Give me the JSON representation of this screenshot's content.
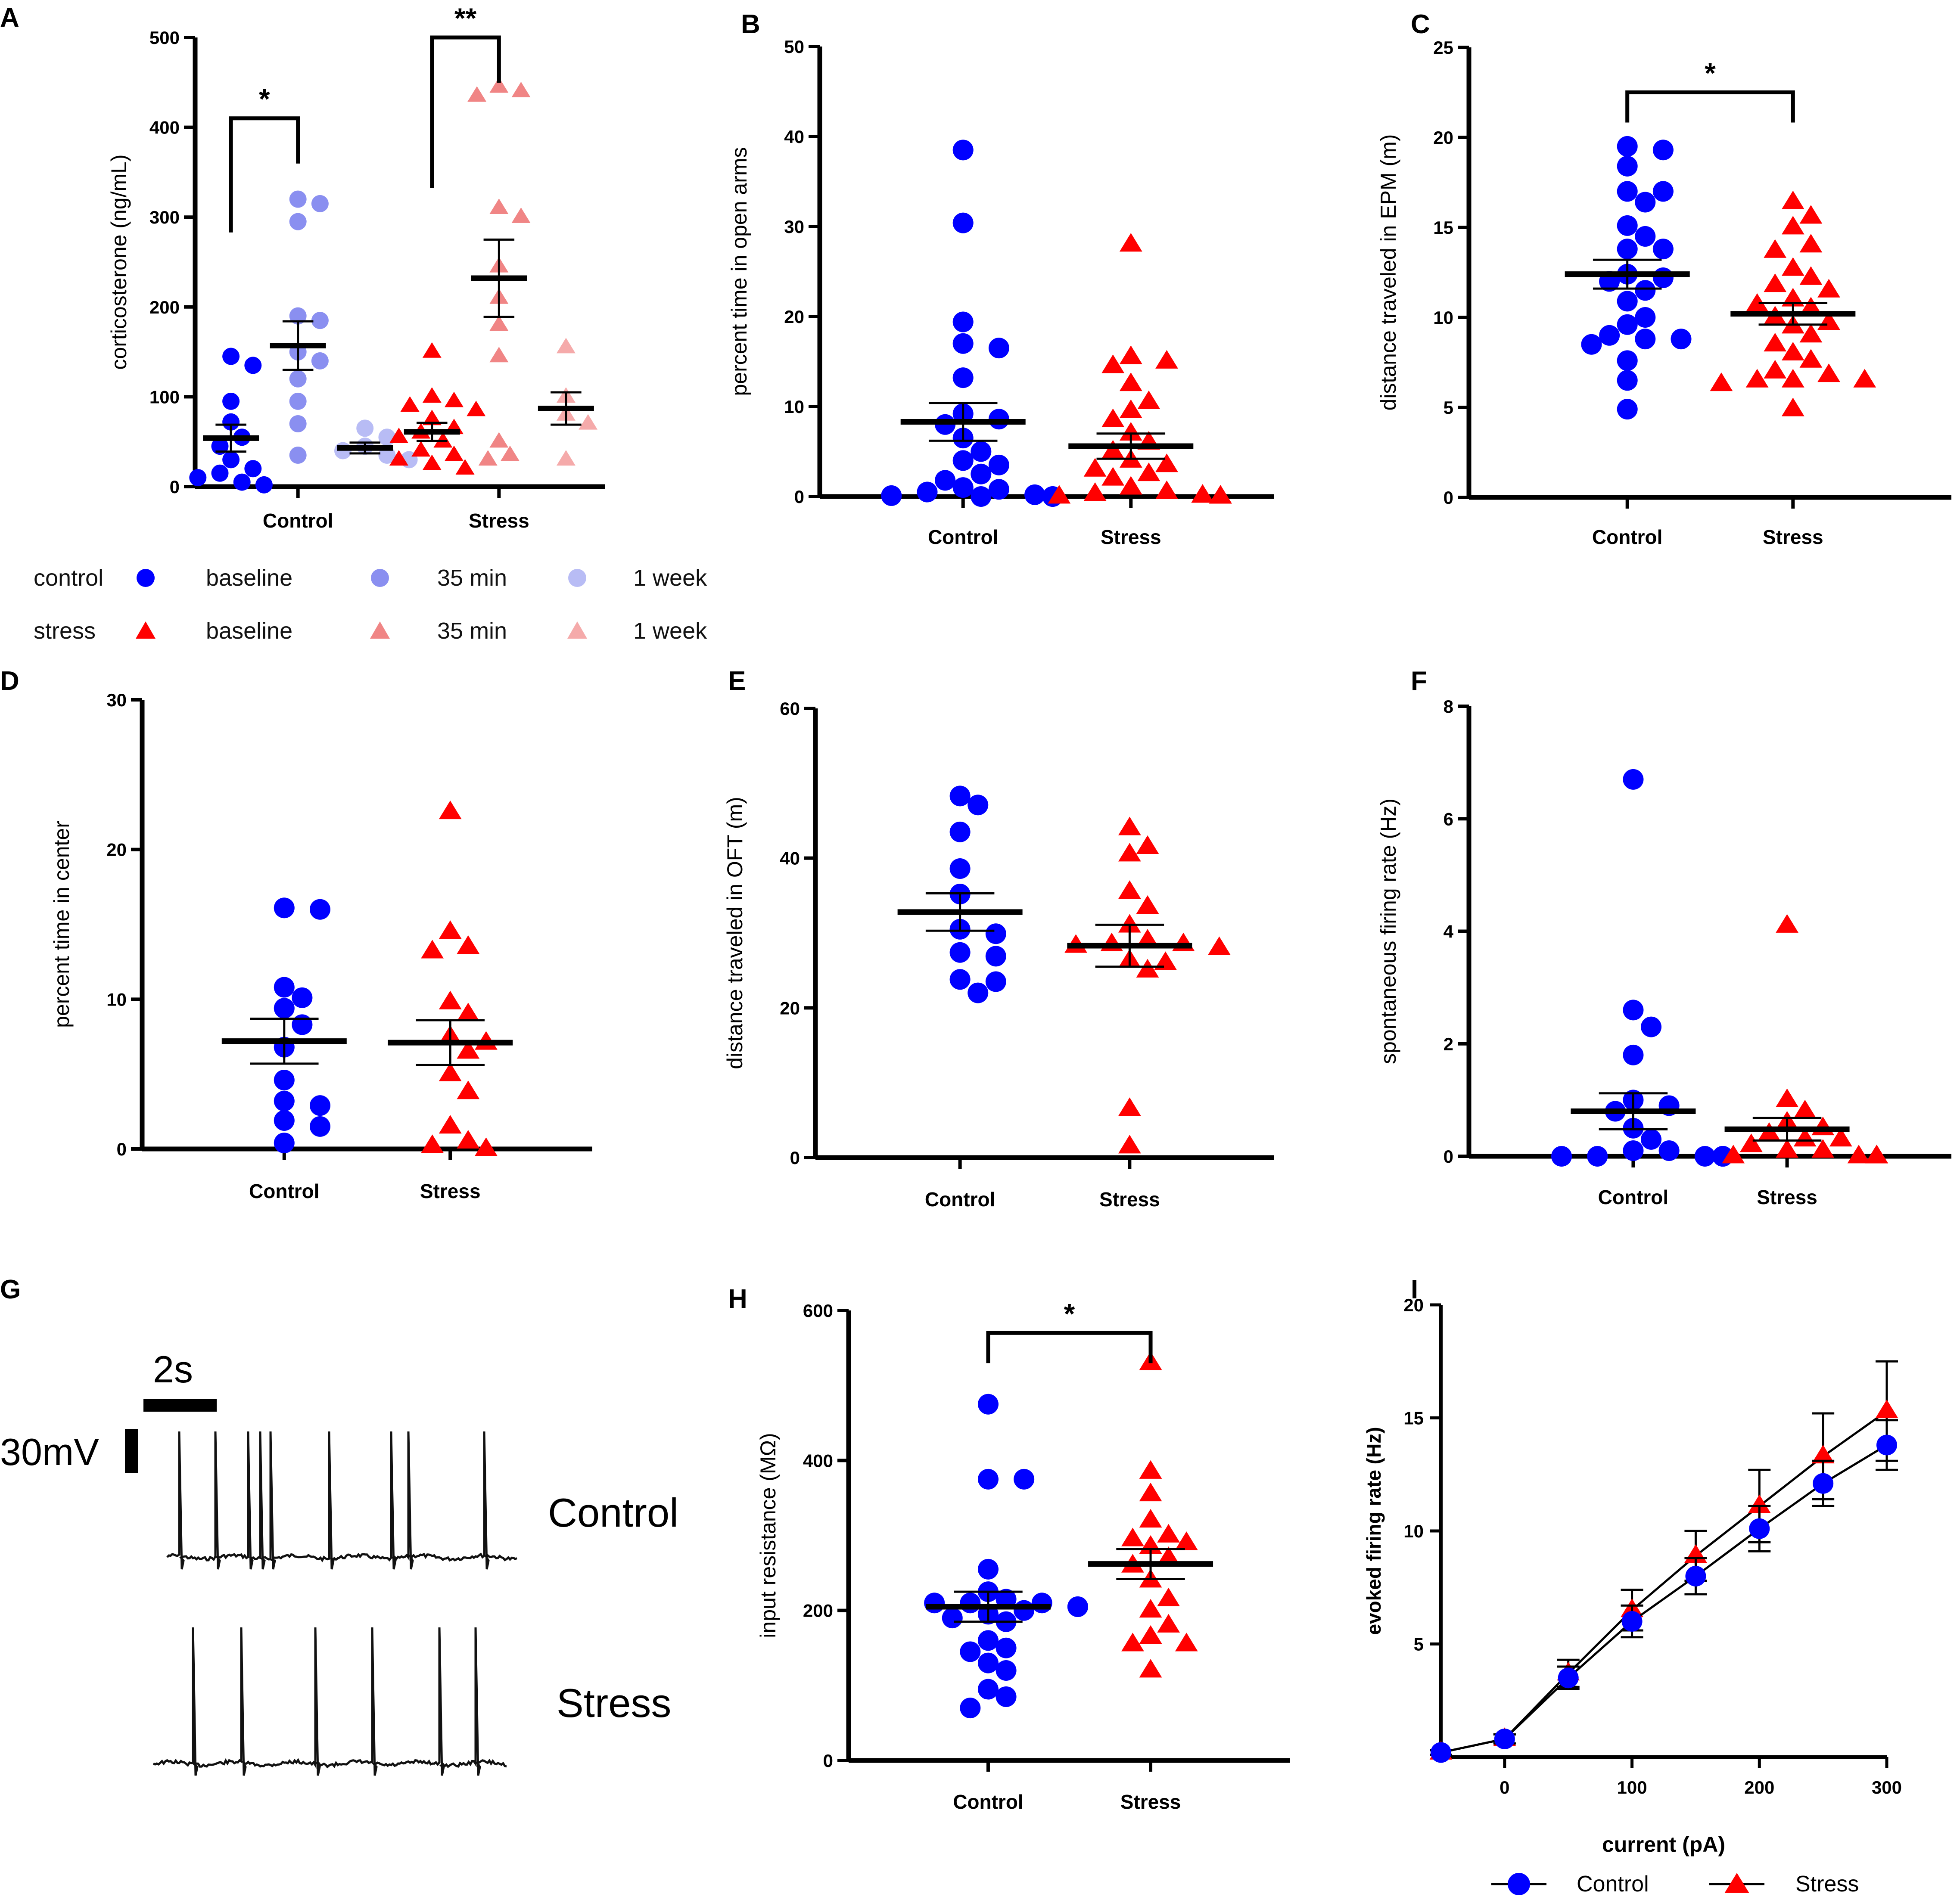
{
  "colors": {
    "control": "#0000ff",
    "stress": "#ff0000",
    "control_35": "#8a8ff0",
    "control_1w": "#b8bcf5",
    "stress_35": "#f08585",
    "stress_1w": "#f5aaaa",
    "axis": "#000000"
  },
  "chart_data": [
    {
      "id": "A",
      "panel_label": "A",
      "type": "scatter",
      "ylabel": "corticosterone (ng/mL)",
      "ylim": [
        0,
        500
      ],
      "yticks": [
        0,
        100,
        200,
        300,
        400,
        500
      ],
      "category_labels": [
        {
          "text": "Control",
          "x": 1
        },
        {
          "text": "Stress",
          "x": 4
        }
      ],
      "xlim": [
        -0.2,
        5.2
      ],
      "groups": [
        {
          "x": 0,
          "marker": "circle",
          "color": "control",
          "mean": 54,
          "sem": 15,
          "values": [
            145,
            135,
            95,
            72,
            55,
            45,
            30,
            20,
            15,
            10,
            5,
            2
          ]
        },
        {
          "x": 1,
          "marker": "circle",
          "color": "control_35",
          "mean": 157,
          "sem": 27,
          "values": [
            320,
            315,
            295,
            190,
            185,
            150,
            140,
            120,
            95,
            70,
            35
          ]
        },
        {
          "x": 2,
          "marker": "circle",
          "color": "control_1w",
          "mean": 43,
          "sem": 6,
          "values": [
            65,
            55,
            45,
            40,
            35,
            30
          ]
        },
        {
          "x": 3,
          "marker": "triangle",
          "color": "stress",
          "mean": 61,
          "sem": 10,
          "values": [
            150,
            100,
            95,
            90,
            85,
            75,
            65,
            60,
            55,
            50,
            40,
            35,
            30,
            25,
            20
          ]
        },
        {
          "x": 4,
          "marker": "triangle",
          "color": "stress_35",
          "mean": 232,
          "sem": 43,
          "values": [
            445,
            440,
            435,
            310,
            300,
            245,
            210,
            180,
            145,
            50,
            35,
            30
          ]
        },
        {
          "x": 5,
          "marker": "triangle",
          "color": "stress_1w",
          "mean": 87,
          "sem": 18,
          "values": [
            155,
            100,
            80,
            70,
            30
          ]
        }
      ],
      "brackets": [
        {
          "x1": 0,
          "x2": 1,
          "y": 410,
          "star": "*"
        },
        {
          "x1": 3,
          "x2": 4,
          "y": 500,
          "star": "**"
        }
      ]
    },
    {
      "id": "B",
      "panel_label": "B",
      "type": "scatter",
      "ylabel": "percent time in open arms",
      "ylim": [
        0,
        50
      ],
      "yticks": [
        0,
        10,
        20,
        30,
        40,
        50
      ],
      "category_labels": [
        {
          "text": "Control",
          "x": 0
        },
        {
          "text": "Stress",
          "x": 1
        }
      ],
      "xlim": [
        -0.7,
        1.7
      ],
      "groups": [
        {
          "x": 0,
          "marker": "circle",
          "color": "control",
          "mean": 8.3,
          "sem": 2.1,
          "values": [
            38.5,
            30.4,
            19.4,
            17.0,
            16.5,
            13.2,
            9.2,
            8.6,
            8.0,
            6.5,
            5.0,
            4.0,
            3.5,
            2.5,
            1.8,
            1.0,
            0.8,
            0.5,
            0.2,
            0.1,
            0.0,
            0.0,
            0.0
          ]
        },
        {
          "x": 1,
          "marker": "triangle",
          "color": "stress",
          "mean": 5.6,
          "sem": 1.4,
          "values": [
            28.0,
            15.5,
            15.0,
            14.5,
            12.5,
            10.5,
            9.5,
            8.5,
            7.0,
            6.0,
            5.0,
            4.0,
            3.5,
            3.0,
            2.5,
            2.0,
            1.0,
            0.5,
            0.3,
            0.1,
            0.0,
            0.0,
            0.0,
            0.0,
            0.0
          ]
        }
      ]
    },
    {
      "id": "C",
      "panel_label": "C",
      "type": "scatter",
      "ylabel": "distance traveled in EPM (m)",
      "ylim": [
        0,
        25
      ],
      "yticks": [
        0,
        5,
        10,
        15,
        20,
        25
      ],
      "category_labels": [
        {
          "text": "Control",
          "x": 0
        },
        {
          "text": "Stress",
          "x": 1
        }
      ],
      "xlim": [
        -0.8,
        1.8
      ],
      "groups": [
        {
          "x": 0,
          "marker": "circle",
          "color": "control",
          "mean": 12.4,
          "sem": 0.8,
          "values": [
            19.5,
            19.3,
            18.4,
            17.0,
            17.0,
            16.4,
            15.1,
            14.5,
            13.8,
            13.8,
            12.4,
            12.2,
            12.0,
            11.5,
            10.9,
            10.0,
            9.6,
            9.0,
            8.8,
            8.8,
            8.5,
            7.6,
            6.5,
            4.9
          ]
        },
        {
          "x": 1,
          "marker": "triangle",
          "color": "stress",
          "mean": 10.2,
          "sem": 0.6,
          "values": [
            16.4,
            15.6,
            15.0,
            14.0,
            13.7,
            12.7,
            12.2,
            11.8,
            11.5,
            11.0,
            10.7,
            10.5,
            10.0,
            9.7,
            9.5,
            9.0,
            8.5,
            8.0,
            7.6,
            7.0,
            6.8,
            6.5,
            6.5,
            6.5,
            6.3,
            4.9
          ]
        }
      ],
      "brackets": [
        {
          "x1": 0,
          "x2": 1,
          "y": 22.5,
          "star": "*"
        }
      ]
    },
    {
      "id": "D",
      "panel_label": "D",
      "type": "scatter",
      "ylabel": "percent time in center",
      "ylim": [
        0,
        30
      ],
      "yticks": [
        0,
        10,
        20,
        30
      ],
      "category_labels": [
        {
          "text": "Control",
          "x": 0
        },
        {
          "text": "Stress",
          "x": 1
        }
      ],
      "xlim": [
        -0.7,
        1.7
      ],
      "groups": [
        {
          "x": 0,
          "marker": "circle",
          "color": "control",
          "mean": 7.2,
          "sem": 1.5,
          "values": [
            16.0,
            16.1,
            10.8,
            10.1,
            9.4,
            8.3,
            6.8,
            4.6,
            3.2,
            2.9,
            1.9,
            1.5,
            0.4
          ]
        },
        {
          "x": 1,
          "marker": "triangle",
          "color": "stress",
          "mean": 7.1,
          "sem": 1.5,
          "values": [
            22.5,
            14.5,
            13.5,
            13.2,
            9.8,
            9.0,
            7.5,
            7.1,
            6.5,
            5.0,
            3.8,
            1.5,
            0.5,
            0.2,
            0.0
          ]
        }
      ]
    },
    {
      "id": "E",
      "panel_label": "E",
      "type": "scatter",
      "ylabel": "distance traveled in OFT (m)",
      "ylim": [
        0,
        60
      ],
      "yticks": [
        0,
        20,
        40,
        60
      ],
      "category_labels": [
        {
          "text": "Control",
          "x": 0
        },
        {
          "text": "Stress",
          "x": 1
        }
      ],
      "xlim": [
        -0.7,
        1.7
      ],
      "groups": [
        {
          "x": 0,
          "marker": "circle",
          "color": "control",
          "mean": 32.8,
          "sem": 2.5,
          "values": [
            48.3,
            47.1,
            43.5,
            38.6,
            35.2,
            30.5,
            29.9,
            27.4,
            26.9,
            23.8,
            23.5,
            22.0
          ]
        },
        {
          "x": 1,
          "marker": "triangle",
          "color": "stress",
          "mean": 28.3,
          "sem": 2.8,
          "values": [
            44.0,
            41.5,
            40.5,
            35.5,
            33.5,
            31.0,
            29.0,
            28.5,
            28.5,
            28.3,
            28.0,
            26.3,
            26.0,
            25.0,
            6.5,
            1.5
          ]
        }
      ]
    },
    {
      "id": "F",
      "panel_label": "F",
      "type": "scatter",
      "ylabel": "spontaneous firing rate (Hz)",
      "ylim": [
        0,
        8
      ],
      "yticks": [
        0,
        2,
        4,
        6,
        8
      ],
      "category_labels": [
        {
          "text": "Control",
          "x": 0
        },
        {
          "text": "Stress",
          "x": 1
        }
      ],
      "xlim": [
        -0.9,
        1.9
      ],
      "groups": [
        {
          "x": 0,
          "marker": "circle",
          "color": "control",
          "mean": 0.8,
          "sem": 0.32,
          "values": [
            6.7,
            2.6,
            2.3,
            1.8,
            1.0,
            0.9,
            0.8,
            0.5,
            0.3,
            0.1,
            0.1,
            0.0,
            0.0,
            0.0,
            0.0,
            0.0,
            0.0,
            0.0,
            0.0,
            0.0,
            0.0
          ]
        },
        {
          "x": 1,
          "marker": "triangle",
          "color": "stress",
          "mean": 0.48,
          "sem": 0.2,
          "values": [
            4.1,
            1.0,
            0.8,
            0.6,
            0.5,
            0.4,
            0.3,
            0.3,
            0.2,
            0.1,
            0.1,
            0.0,
            0.0,
            0.0,
            0.0,
            0.0,
            0.0,
            0.0,
            0.0,
            0.0
          ]
        }
      ]
    },
    {
      "id": "H",
      "panel_label": "H",
      "type": "scatter",
      "ylabel": "input resistance (MΩ)",
      "ylim": [
        0,
        600
      ],
      "yticks": [
        0,
        200,
        400,
        600
      ],
      "category_labels": [
        {
          "text": "Control",
          "x": 0
        },
        {
          "text": "Stress",
          "x": 1
        }
      ],
      "xlim": [
        -0.7,
        1.7
      ],
      "groups": [
        {
          "x": 0,
          "marker": "circle",
          "color": "control",
          "mean": 205,
          "sem": 20,
          "values": [
            475,
            375,
            375,
            255,
            225,
            215,
            210,
            210,
            210,
            205,
            205,
            200,
            195,
            190,
            185,
            160,
            150,
            145,
            130,
            120,
            95,
            85,
            70
          ]
        },
        {
          "x": 1,
          "marker": "triangle",
          "color": "stress",
          "mean": 262,
          "sem": 20,
          "values": [
            530,
            385,
            355,
            320,
            300,
            295,
            290,
            285,
            270,
            260,
            240,
            215,
            200,
            180,
            165,
            155,
            155,
            120
          ]
        }
      ],
      "brackets": [
        {
          "x1": 0,
          "x2": 1,
          "y": 570,
          "star": "*"
        }
      ]
    },
    {
      "id": "I",
      "panel_label": "I",
      "type": "line",
      "xlabel": "current (pA)",
      "ylabel": "evoked firing rate (Hz)",
      "xlim": [
        -50,
        300
      ],
      "ylim": [
        0,
        20
      ],
      "xticks": [
        0,
        100,
        200,
        300
      ],
      "yticks": [
        5,
        10,
        15,
        20
      ],
      "x": [
        -50,
        0,
        50,
        100,
        150,
        200,
        250,
        300
      ],
      "series": [
        {
          "name": "Stress",
          "color": "stress",
          "marker": "triangle",
          "values": [
            0.2,
            0.8,
            3.7,
            6.5,
            8.9,
            11.1,
            13.3,
            15.3
          ],
          "sem": [
            0.1,
            0.2,
            0.6,
            0.9,
            1.1,
            1.6,
            1.9,
            2.2
          ]
        },
        {
          "name": "Control",
          "color": "control",
          "marker": "circle",
          "values": [
            0.2,
            0.8,
            3.5,
            6.0,
            8.0,
            10.1,
            12.1,
            13.8
          ],
          "sem": [
            0.1,
            0.2,
            0.5,
            0.7,
            0.8,
            1.0,
            1.0,
            1.1
          ]
        }
      ]
    }
  ],
  "legend_A": {
    "rows": [
      {
        "label": "control",
        "items": [
          "baseline",
          "35 min",
          "1 week"
        ]
      },
      {
        "label": "stress",
        "items": [
          "baseline",
          "35 min",
          "1 week"
        ]
      }
    ]
  },
  "traces": {
    "panel_label": "G",
    "time_scale": "2s",
    "voltage_scale": "30mV",
    "control_label": "Control",
    "stress_label": "Stress"
  }
}
